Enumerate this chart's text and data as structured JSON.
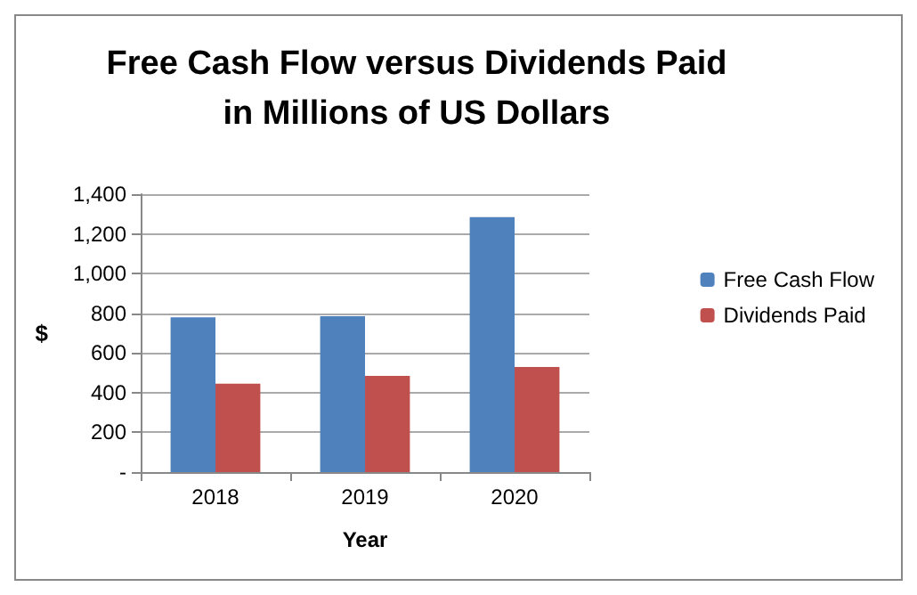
{
  "chart_data": {
    "type": "bar",
    "title": "Free Cash Flow versus Dividends Paid\nin Millions of US Dollars",
    "xlabel": "Year",
    "ylabel": "$",
    "categories": [
      "2018",
      "2019",
      "2020"
    ],
    "series": [
      {
        "name": "Free Cash Flow",
        "color": "#4f81bd",
        "values": [
          780,
          785,
          1285
        ]
      },
      {
        "name": "Dividends Paid",
        "color": "#c0504d",
        "values": [
          445,
          485,
          530
        ]
      }
    ],
    "ylim": [
      0,
      1400
    ],
    "yticks": [
      {
        "value": 0,
        "label": "-"
      },
      200,
      400,
      600,
      800,
      {
        "value": 1000,
        "label": "1,000"
      },
      {
        "value": 1200,
        "label": "1,200"
      },
      {
        "value": 1400,
        "label": "1,400"
      }
    ],
    "grid": "y",
    "legend": "right"
  }
}
